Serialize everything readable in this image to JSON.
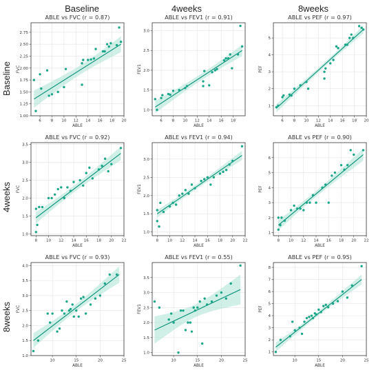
{
  "figure": {
    "col_titles": [
      "Baseline",
      "4weeks",
      "8weeks"
    ],
    "row_titles": [
      "Baseline",
      "4weeks",
      "8weeks"
    ],
    "colors": {
      "point": "#1aa688",
      "line": "#14967c",
      "band": "#a9e2d4",
      "grid": "#e3e3e3"
    }
  },
  "chart_data": [
    {
      "type": "scatter",
      "title": "ABLE vs FVC (r = 0.87)",
      "xlabel": "ABLE",
      "ylabel": "FVC",
      "xlim": [
        4.5,
        20
      ],
      "ylim": [
        1.0,
        2.95
      ],
      "xticks": [
        6,
        8,
        10,
        12,
        14,
        16,
        18,
        20
      ],
      "yticks": [
        1.0,
        1.25,
        1.5,
        1.75,
        2.0,
        2.25,
        2.5,
        2.75
      ],
      "x": [
        5.0,
        5.3,
        6.0,
        6.2,
        7.2,
        7.5,
        8.0,
        9.0,
        10.0,
        10.3,
        13.0,
        13.0,
        13.2,
        14.0,
        14.5,
        15.0,
        15.3,
        16.5,
        16.8,
        17.2,
        17.5,
        17.8,
        18.8,
        19.2,
        19.5
      ],
      "y": [
        1.75,
        1.1,
        1.87,
        1.57,
        1.95,
        1.42,
        1.45,
        1.5,
        1.6,
        1.98,
        1.65,
        2.1,
        2.17,
        2.17,
        2.18,
        2.2,
        2.4,
        2.35,
        2.35,
        2.5,
        2.45,
        2.52,
        2.48,
        2.85,
        2.55
      ],
      "fit": {
        "x": [
          5.0,
          19.5
        ],
        "y": [
          1.35,
          2.5
        ]
      }
    },
    {
      "type": "scatter",
      "title": "ABLE vs FEV1 (r = 0.91)",
      "xlabel": "ABLE",
      "ylabel": "FEV1",
      "xlim": [
        4.5,
        20
      ],
      "ylim": [
        0.85,
        3.2
      ],
      "xticks": [
        6,
        8,
        10,
        12,
        14,
        16,
        18
      ],
      "yticks": [
        1.0,
        1.5,
        2.0,
        2.5,
        3.0
      ],
      "x": [
        5.0,
        5.3,
        6.0,
        6.2,
        7.2,
        7.5,
        8.0,
        9.0,
        10.0,
        10.3,
        13.0,
        13.0,
        13.2,
        14.0,
        14.5,
        15.0,
        15.3,
        16.5,
        16.8,
        17.2,
        17.5,
        17.8,
        18.8,
        19.2,
        19.5
      ],
      "y": [
        1.27,
        1.0,
        1.3,
        1.37,
        1.4,
        1.38,
        1.48,
        1.5,
        1.55,
        1.6,
        1.72,
        1.6,
        1.98,
        1.62,
        1.95,
        2.0,
        2.03,
        2.25,
        2.3,
        2.3,
        2.4,
        2.05,
        2.4,
        3.12,
        2.6
      ],
      "fit": {
        "x": [
          5.0,
          19.5
        ],
        "y": [
          1.07,
          2.5
        ]
      }
    },
    {
      "type": "scatter",
      "title": "ABLE vs PEF (r = 0.97)",
      "xlabel": "ABLE",
      "ylabel": "PEF",
      "xlim": [
        4.5,
        20
      ],
      "ylim": [
        0.4,
        5.9
      ],
      "xticks": [
        6,
        8,
        10,
        12,
        14,
        16,
        18,
        20
      ],
      "yticks": [
        1,
        2,
        3,
        4,
        5
      ],
      "x": [
        5.0,
        5.3,
        6.0,
        6.2,
        7.2,
        7.5,
        8.0,
        9.0,
        10.0,
        10.3,
        13.0,
        13.0,
        13.2,
        14.0,
        14.5,
        15.0,
        15.3,
        16.5,
        16.8,
        17.2,
        17.5,
        17.8,
        18.8,
        19.2,
        19.5
      ],
      "y": [
        0.9,
        1.0,
        1.5,
        1.6,
        1.65,
        1.6,
        2.0,
        2.2,
        2.4,
        2.0,
        2.6,
        3.0,
        3.2,
        3.5,
        3.7,
        4.5,
        4.4,
        4.6,
        4.6,
        5.0,
        5.2,
        5.0,
        5.7,
        5.6,
        5.5
      ],
      "fit": {
        "x": [
          5.0,
          19.5
        ],
        "y": [
          0.85,
          5.5
        ]
      }
    },
    {
      "type": "scatter",
      "title": "ABLE vs FVC (r = 0.92)",
      "xlabel": "ABLE",
      "ylabel": "FVC",
      "xlim": [
        7.2,
        22
      ],
      "ylim": [
        0.95,
        3.55
      ],
      "xticks": [
        8,
        10,
        12,
        14,
        16,
        18,
        20,
        22
      ],
      "yticks": [
        1.0,
        1.5,
        2.0,
        2.5,
        3.0,
        3.5
      ],
      "x": [
        8.0,
        8.0,
        8.2,
        8.5,
        9.0,
        10.0,
        10.5,
        11.0,
        11.5,
        12.0,
        12.5,
        13.0,
        13.5,
        14.0,
        15.0,
        15.5,
        16.0,
        16.5,
        17.0,
        18.0,
        18.5,
        19.0,
        19.5,
        20.0,
        21.5
      ],
      "y": [
        1.7,
        1.05,
        1.25,
        1.75,
        1.75,
        2.0,
        2.0,
        2.1,
        2.25,
        2.3,
        2.0,
        2.3,
        2.2,
        2.45,
        2.5,
        2.35,
        2.7,
        2.85,
        2.55,
        2.8,
        2.9,
        3.1,
        2.75,
        2.95,
        3.4
      ],
      "fit": {
        "x": [
          8.0,
          21.5
        ],
        "y": [
          1.45,
          3.25
        ]
      }
    },
    {
      "type": "scatter",
      "title": "ABLE vs FEV1 (r = 0.94)",
      "xlabel": "ABLE",
      "ylabel": "FEV1",
      "xlim": [
        7.2,
        22
      ],
      "ylim": [
        0.9,
        3.45
      ],
      "xticks": [
        8,
        10,
        12,
        14,
        16,
        18,
        20,
        22
      ],
      "yticks": [
        1.0,
        1.5,
        2.0,
        2.5,
        3.0
      ],
      "x": [
        8.0,
        8.0,
        8.3,
        8.5,
        9.0,
        10.0,
        10.5,
        11.0,
        11.5,
        12.0,
        12.5,
        13.0,
        13.5,
        14.0,
        15.0,
        15.5,
        16.0,
        16.5,
        17.0,
        18.0,
        18.5,
        19.0,
        19.5,
        20.0,
        21.5
      ],
      "y": [
        1.6,
        1.3,
        1.15,
        1.8,
        1.55,
        1.7,
        1.8,
        1.75,
        2.0,
        2.05,
        2.15,
        2.05,
        2.3,
        2.2,
        2.4,
        2.45,
        2.5,
        2.3,
        2.5,
        2.6,
        2.65,
        2.7,
        2.85,
        2.95,
        3.35
      ],
      "fit": {
        "x": [
          8.0,
          21.5
        ],
        "y": [
          1.5,
          3.1
        ]
      }
    },
    {
      "type": "scatter",
      "title": "ABLE vs PEF (r = 0.90)",
      "xlabel": "ABLE",
      "ylabel": "PEF",
      "xlim": [
        7.2,
        22
      ],
      "ylim": [
        0.8,
        7.0
      ],
      "xticks": [
        8,
        10,
        12,
        14,
        16,
        18,
        20,
        22
      ],
      "yticks": [
        1,
        2,
        3,
        4,
        5,
        6
      ],
      "x": [
        8.0,
        8.0,
        8.3,
        8.5,
        9.0,
        10.0,
        10.5,
        11.0,
        11.5,
        12.0,
        12.5,
        13.0,
        13.5,
        14.0,
        15.0,
        15.5,
        16.0,
        16.5,
        17.0,
        18.0,
        18.5,
        19.0,
        19.5,
        20.0,
        21.5
      ],
      "y": [
        2.0,
        1.2,
        1.5,
        2.0,
        1.8,
        2.5,
        2.8,
        2.6,
        2.6,
        2.5,
        3.0,
        3.0,
        3.5,
        3.0,
        4.0,
        4.2,
        3.0,
        4.8,
        5.0,
        5.5,
        5.2,
        5.5,
        6.5,
        6.2,
        6.5
      ],
      "fit": {
        "x": [
          8.0,
          21.5
        ],
        "y": [
          1.5,
          6.2
        ]
      }
    },
    {
      "type": "scatter",
      "title": "ABLE vs FVC (r = 0.93)",
      "xlabel": "ABLE",
      "ylabel": "FVC",
      "xlim": [
        5.5,
        25
      ],
      "ylim": [
        1.0,
        4.1
      ],
      "xticks": [
        10,
        15,
        20,
        25
      ],
      "yticks": [
        1.0,
        1.5,
        2.0,
        2.5,
        3.0,
        3.5,
        4.0
      ],
      "x": [
        6.0,
        7.0,
        9.0,
        9.5,
        10.0,
        11.0,
        11.5,
        12.0,
        12.5,
        13.0,
        13.5,
        13.8,
        14.2,
        14.5,
        15.0,
        15.5,
        16.0,
        16.5,
        17.0,
        18.0,
        19.0,
        20.0,
        21.0,
        22.0,
        23.5
      ],
      "y": [
        1.15,
        1.5,
        2.4,
        2.1,
        2.4,
        1.8,
        1.9,
        2.5,
        2.4,
        2.8,
        2.5,
        2.55,
        2.7,
        2.3,
        2.5,
        2.3,
        2.9,
        2.95,
        2.4,
        2.7,
        2.9,
        3.0,
        3.4,
        3.7,
        3.7
      ],
      "fit": {
        "x": [
          6.0,
          24.0
        ],
        "y": [
          1.5,
          3.7
        ]
      }
    },
    {
      "type": "scatter",
      "title": "ABLE vs FEV1 (r = 0.55)",
      "xlabel": "ABLE",
      "ylabel": "FEV1",
      "xlim": [
        5.5,
        25
      ],
      "ylim": [
        0.9,
        4.0
      ],
      "xticks": [
        10,
        15,
        20,
        25
      ],
      "yticks": [
        1.0,
        1.5,
        2.0,
        2.5,
        3.0,
        3.5
      ],
      "x": [
        6.0,
        7.0,
        9.0,
        9.5,
        10.0,
        11.0,
        11.5,
        12.0,
        12.5,
        13.0,
        13.5,
        13.8,
        14.2,
        14.5,
        15.0,
        15.5,
        16.0,
        16.5,
        17.0,
        18.0,
        19.0,
        20.0,
        21.0,
        22.0,
        24.0
      ],
      "y": [
        2.7,
        2.5,
        2.1,
        2.3,
        2.0,
        1.0,
        2.4,
        2.4,
        1.75,
        2.0,
        2.0,
        1.7,
        2.5,
        2.4,
        2.5,
        2.7,
        1.3,
        2.8,
        2.6,
        2.7,
        2.9,
        3.0,
        2.8,
        3.3,
        3.9
      ],
      "fit": {
        "x": [
          6.0,
          24.0
        ],
        "y": [
          1.75,
          3.1
        ]
      }
    },
    {
      "type": "scatter",
      "title": "ABLE vs PEF (r = 0.95)",
      "xlabel": "ABLE",
      "ylabel": "PEF",
      "xlim": [
        5.5,
        25
      ],
      "ylim": [
        0.7,
        8.4
      ],
      "xticks": [
        10,
        15,
        20,
        25
      ],
      "yticks": [
        1,
        2,
        3,
        4,
        5,
        6,
        7,
        8
      ],
      "x": [
        6.0,
        7.0,
        9.0,
        9.5,
        10.0,
        11.0,
        11.5,
        12.0,
        12.5,
        13.0,
        13.5,
        13.8,
        14.2,
        14.5,
        15.0,
        15.5,
        16.0,
        16.5,
        17.0,
        18.0,
        19.0,
        20.0,
        21.0,
        22.0,
        24.0
      ],
      "y": [
        1.0,
        2.0,
        2.3,
        3.5,
        2.8,
        3.0,
        2.5,
        3.5,
        3.8,
        3.9,
        4.0,
        3.8,
        4.2,
        4.1,
        4.5,
        4.3,
        4.8,
        4.9,
        4.7,
        5.0,
        5.2,
        6.0,
        5.5,
        6.5,
        8.1
      ],
      "fit": {
        "x": [
          6.0,
          24.0
        ],
        "y": [
          1.4,
          7.0
        ]
      }
    }
  ]
}
